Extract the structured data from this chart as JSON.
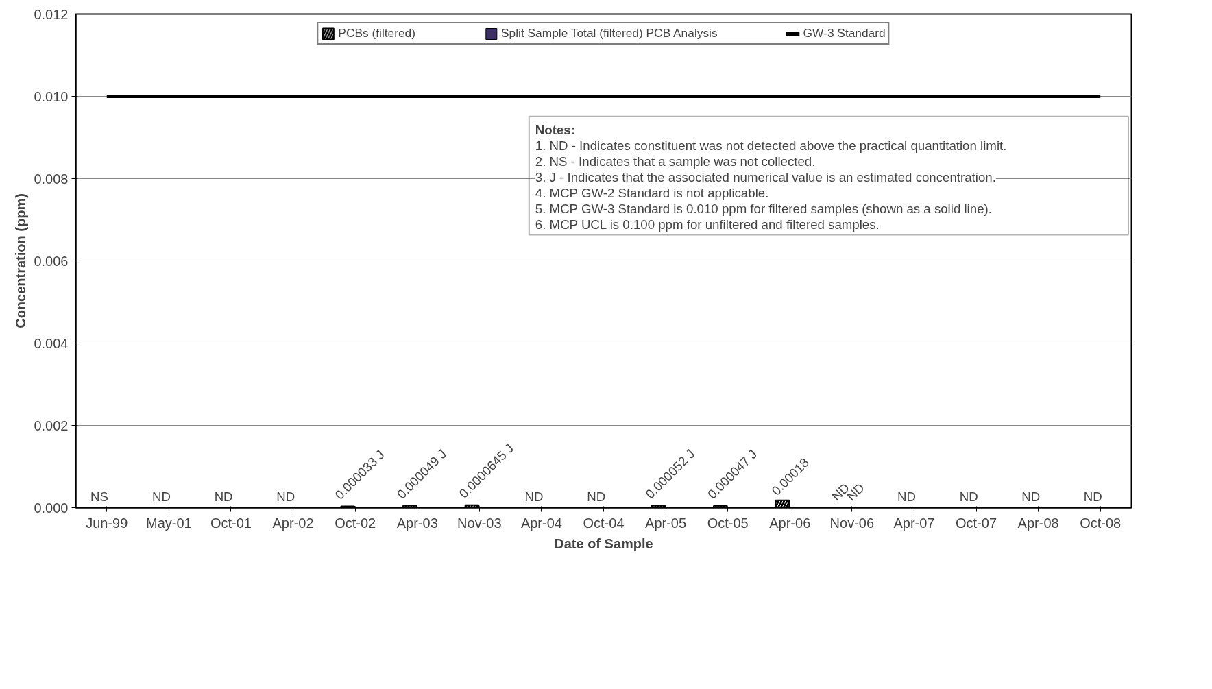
{
  "chart_data": {
    "type": "bar",
    "xlabel": "Date of Sample",
    "ylabel": "Concentration (ppm)",
    "categories": [
      "Jun-99",
      "May-01",
      "Oct-01",
      "Apr-02",
      "Oct-02",
      "Apr-03",
      "Nov-03",
      "Apr-04",
      "Oct-04",
      "Apr-05",
      "Oct-05",
      "Apr-06",
      "Nov-06",
      "Apr-07",
      "Oct-07",
      "Apr-08",
      "Oct-08"
    ],
    "series": [
      {
        "name": "PCBs (filtered)",
        "color": "#000000",
        "values": [
          null,
          null,
          null,
          null,
          3.3e-05,
          4.9e-05,
          6.45e-05,
          null,
          null,
          5.2e-05,
          4.7e-05,
          0.00018,
          null,
          null,
          null,
          null,
          null
        ],
        "value_labels": [
          "NS",
          "ND",
          "ND",
          "ND",
          "0.000033 J",
          "0.000049 J",
          "0.0000645 J",
          "ND",
          "ND",
          "0.000052 J",
          "0.000047 J",
          "0.00018",
          "ND",
          "ND",
          "ND",
          "ND",
          "ND"
        ]
      },
      {
        "name": "Split Sample Total (filtered) PCB Analysis",
        "color": "#3c3064",
        "values": [
          null,
          null,
          null,
          null,
          null,
          null,
          null,
          null,
          null,
          null,
          null,
          null,
          null,
          null,
          null,
          null,
          null
        ],
        "value_labels": [
          null,
          null,
          null,
          null,
          null,
          null,
          null,
          null,
          null,
          null,
          null,
          null,
          "ND",
          null,
          null,
          null,
          null
        ]
      },
      {
        "name": "GW-3 Standard",
        "type": "line",
        "color": "#000000",
        "values": [
          0.01,
          0.01,
          0.01,
          0.01,
          0.01,
          0.01,
          0.01,
          0.01,
          0.01,
          0.01,
          0.01,
          0.01,
          0.01,
          0.01,
          0.01,
          0.01,
          0.01
        ]
      }
    ],
    "ylim": [
      0,
      0.012
    ],
    "yticks": [
      {
        "value": 0,
        "label": "0.000"
      },
      {
        "value": 0.002,
        "label": "0.002"
      },
      {
        "value": 0.004,
        "label": "0.004"
      },
      {
        "value": 0.006,
        "label": "0.006"
      },
      {
        "value": 0.008,
        "label": "0.008"
      },
      {
        "value": 0.01,
        "label": "0.010"
      },
      {
        "value": 0.012,
        "label": "0.012"
      }
    ],
    "grid": "y",
    "legend": "top",
    "annotations": [
      "Notes:",
      "1. ND - Indicates constituent was not detected above the practical quantitation limit.",
      "2. NS - Indicates that a sample was not collected.",
      "3. J - Indicates that the associated numerical value is an estimated concentration.",
      "4. MCP GW-2 Standard is not applicable.",
      "5. MCP GW-3 Standard is 0.010 ppm for filtered samples (shown as a solid line).",
      "6. MCP UCL is 0.100 ppm for unfiltered and filtered samples."
    ]
  }
}
